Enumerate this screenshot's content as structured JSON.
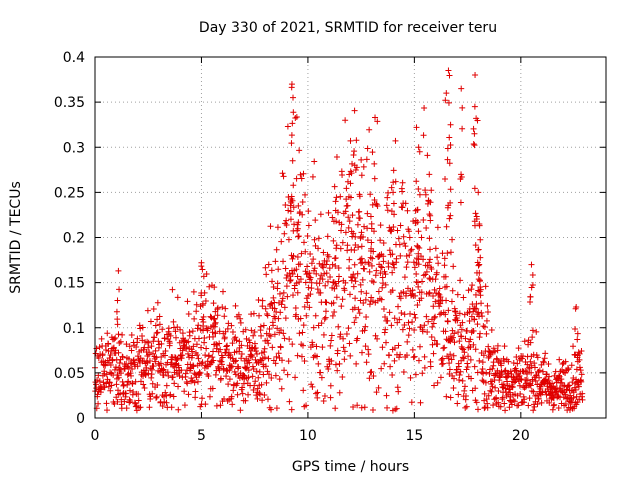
{
  "chart_data": {
    "type": "scatter",
    "title": "Day 330 of 2021, SRMTID for receiver teru",
    "xlabel": "GPS time / hours",
    "ylabel": "SRMTID / TECUs",
    "xlim": [
      0,
      24
    ],
    "ylim": [
      0,
      0.4
    ],
    "xticks": [
      0,
      5,
      10,
      15,
      20
    ],
    "xtick_labels": [
      "0",
      "5",
      "10",
      "15",
      "20"
    ],
    "yticks": [
      0,
      0.05,
      0.1,
      0.15,
      0.2,
      0.25,
      0.3,
      0.35,
      0.4
    ],
    "ytick_labels": [
      "0",
      "0.05",
      "0.1",
      "0.15",
      "0.2",
      "0.25",
      "0.3",
      "0.35",
      "0.4"
    ],
    "grid": true,
    "marker": "+",
    "color": "#e00000",
    "series": [
      {
        "name": "SRMTID",
        "profile_x": [
          0,
          0.5,
          1.0,
          1.5,
          2.0,
          2.5,
          3.0,
          3.5,
          4.0,
          4.5,
          5.0,
          5.5,
          6.0,
          6.5,
          7.0,
          7.5,
          8.0,
          8.5,
          9.0,
          9.5,
          10.0,
          10.5,
          11.0,
          11.5,
          12.0,
          12.5,
          13.0,
          13.5,
          14.0,
          14.5,
          15.0,
          15.5,
          16.0,
          16.5,
          17.0,
          17.5,
          18.0,
          18.5,
          19.0,
          19.5,
          20.0,
          20.5,
          21.0,
          21.5,
          22.0,
          22.5,
          22.9
        ],
        "profile_y": [
          0.055,
          0.05,
          0.058,
          0.05,
          0.055,
          0.06,
          0.065,
          0.065,
          0.065,
          0.068,
          0.085,
          0.09,
          0.07,
          0.06,
          0.06,
          0.065,
          0.08,
          0.11,
          0.15,
          0.17,
          0.14,
          0.12,
          0.13,
          0.15,
          0.2,
          0.17,
          0.16,
          0.14,
          0.17,
          0.15,
          0.14,
          0.17,
          0.12,
          0.11,
          0.08,
          0.075,
          0.1,
          0.06,
          0.045,
          0.04,
          0.045,
          0.05,
          0.04,
          0.03,
          0.035,
          0.04,
          0.045
        ],
        "spread": 0.45,
        "peaks": [
          {
            "x": 1.1,
            "y": 0.163
          },
          {
            "x": 5.0,
            "y": 0.172
          },
          {
            "x": 5.6,
            "y": 0.145
          },
          {
            "x": 9.25,
            "y": 0.37
          },
          {
            "x": 9.3,
            "y": 0.355
          },
          {
            "x": 9.55,
            "y": 0.235
          },
          {
            "x": 11.3,
            "y": 0.24
          },
          {
            "x": 12.0,
            "y": 0.26
          },
          {
            "x": 12.2,
            "y": 0.28
          },
          {
            "x": 12.5,
            "y": 0.286
          },
          {
            "x": 13.0,
            "y": 0.21
          },
          {
            "x": 14.0,
            "y": 0.25
          },
          {
            "x": 15.1,
            "y": 0.322
          },
          {
            "x": 15.2,
            "y": 0.3
          },
          {
            "x": 15.7,
            "y": 0.27
          },
          {
            "x": 16.6,
            "y": 0.385
          },
          {
            "x": 16.7,
            "y": 0.325
          },
          {
            "x": 16.5,
            "y": 0.36
          },
          {
            "x": 17.2,
            "y": 0.365
          },
          {
            "x": 17.85,
            "y": 0.38
          },
          {
            "x": 17.9,
            "y": 0.332
          },
          {
            "x": 18.0,
            "y": 0.25
          },
          {
            "x": 18.05,
            "y": 0.215
          },
          {
            "x": 20.5,
            "y": 0.17
          },
          {
            "x": 22.6,
            "y": 0.123
          }
        ]
      }
    ]
  }
}
